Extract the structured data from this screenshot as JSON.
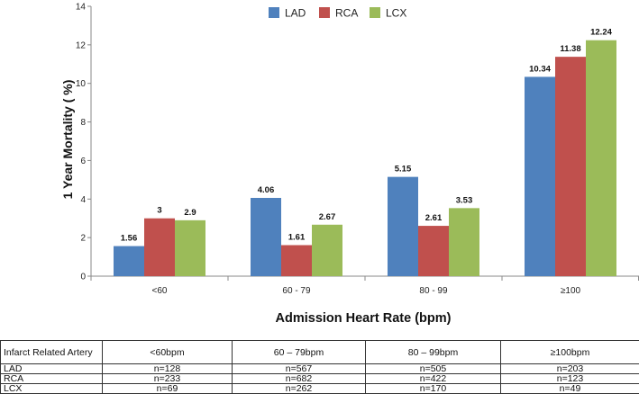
{
  "chart_data": {
    "type": "bar",
    "categories": [
      "<60",
      "60 - 79",
      "80 - 99",
      "≥100"
    ],
    "series": [
      {
        "name": "LAD",
        "color": "#4f81bd",
        "values": [
          1.56,
          4.06,
          5.15,
          10.34
        ],
        "labels": [
          "1.56",
          "4.06",
          "5.15",
          "10.34"
        ]
      },
      {
        "name": "RCA",
        "color": "#c0504d",
        "values": [
          3,
          1.61,
          2.61,
          11.38
        ],
        "labels": [
          "3",
          "1.61",
          "2.61",
          "11.38"
        ]
      },
      {
        "name": "LCX",
        "color": "#9bbb59",
        "values": [
          2.9,
          2.67,
          3.53,
          12.24
        ],
        "labels": [
          "2.9",
          "2.67",
          "3.53",
          "12.24"
        ]
      }
    ],
    "ylim": [
      0,
      14
    ],
    "yticks": [
      0,
      2,
      4,
      6,
      8,
      10,
      12,
      14
    ],
    "ylabel": "1 Year Mortality ( %)",
    "xlabel": "Admission Heart Rate (bpm)",
    "legend": "top-center",
    "grid": false
  },
  "table": {
    "headers": [
      "Infarct Related Artery",
      "<60bpm",
      "60 – 79bpm",
      "80 – 99bpm",
      "≥100bpm"
    ],
    "rows": [
      [
        "LAD",
        "n=128",
        "n=567",
        "n=505",
        "n=203"
      ],
      [
        "RCA",
        "n=233",
        "n=682",
        "n=422",
        "n=123"
      ],
      [
        "LCX",
        "n=69",
        "n=262",
        "n=170",
        "n=49"
      ]
    ]
  }
}
